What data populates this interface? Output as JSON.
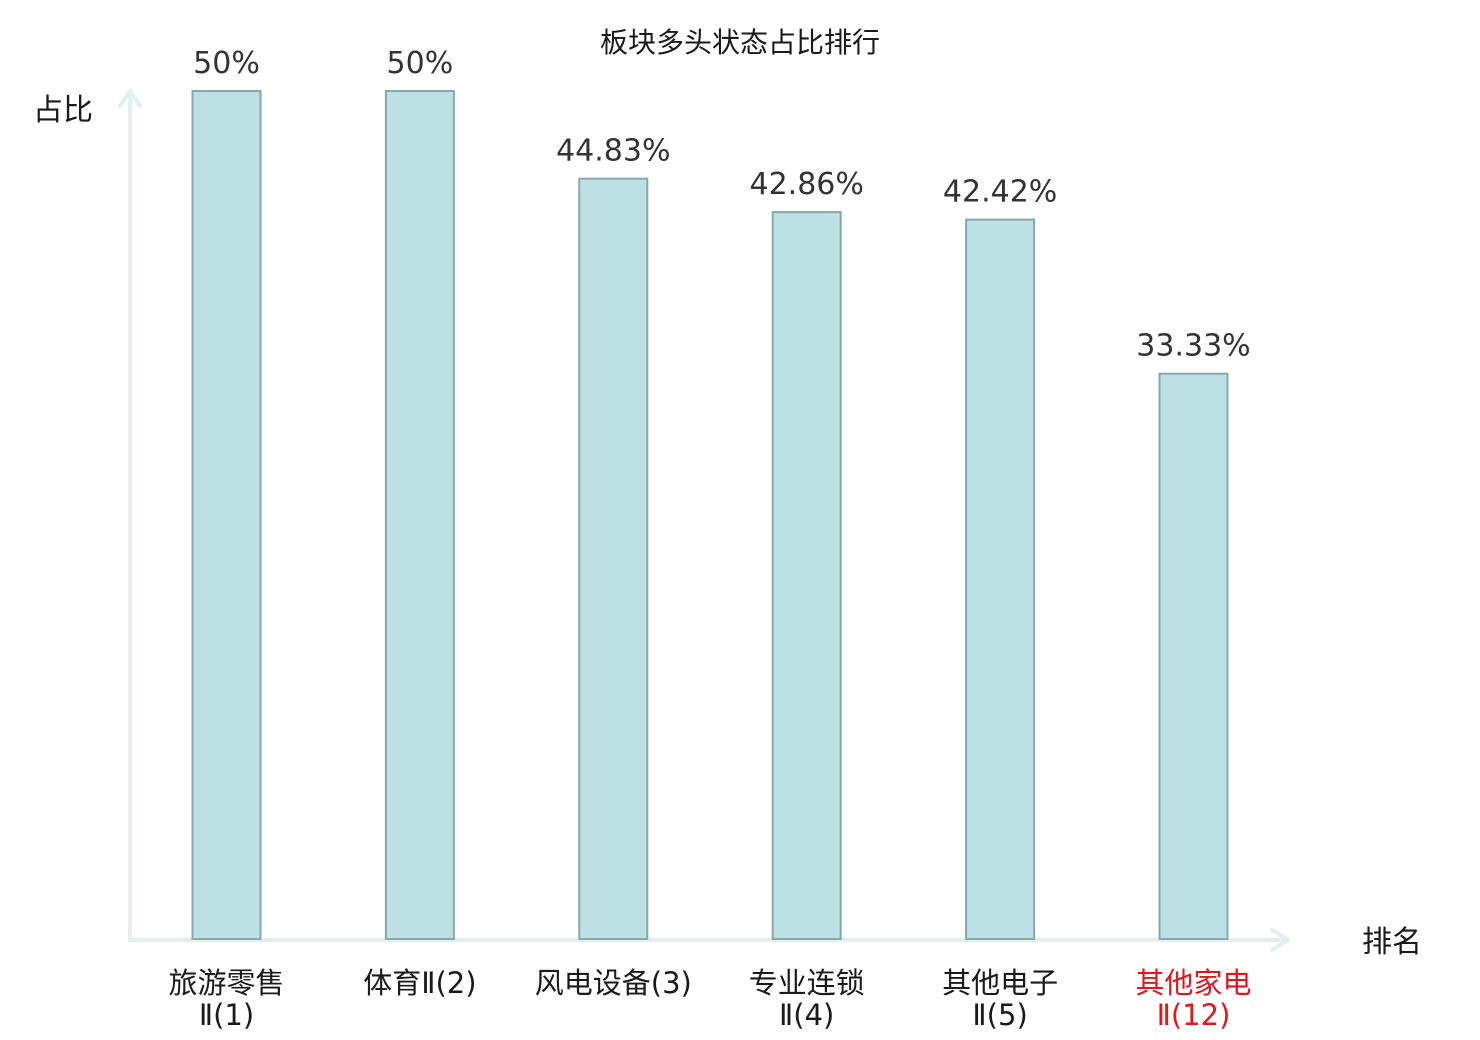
{
  "chart_data": {
    "type": "bar",
    "title": "板块多头状态占比排行",
    "ylabel": "占比",
    "xlabel": "排名",
    "categories": [
      {
        "line1": "旅游零售",
        "line2": "Ⅱ(1)",
        "highlight": false
      },
      {
        "line1": "体育Ⅱ(2)",
        "line2": "",
        "highlight": false
      },
      {
        "line1": "风电设备(3)",
        "line2": "",
        "highlight": false
      },
      {
        "line1": "专业连锁",
        "line2": "Ⅱ(4)",
        "highlight": false
      },
      {
        "line1": "其他电子",
        "line2": "Ⅱ(5)",
        "highlight": false
      },
      {
        "line1": "其他家电",
        "line2": "Ⅱ(12)",
        "highlight": true
      }
    ],
    "values": [
      50,
      50,
      44.83,
      42.86,
      42.42,
      33.33
    ],
    "value_labels": [
      "50%",
      "50%",
      "44.83%",
      "42.86%",
      "42.42%",
      "33.33%"
    ],
    "ylim": [
      0,
      50
    ],
    "grid": false,
    "colors": {
      "bar_fill": "#bce0e3",
      "bar_stroke": "#86a9ad",
      "axis": "#dff0ee",
      "text": "#1a1a1a",
      "highlight_text": "#e8141b"
    }
  }
}
